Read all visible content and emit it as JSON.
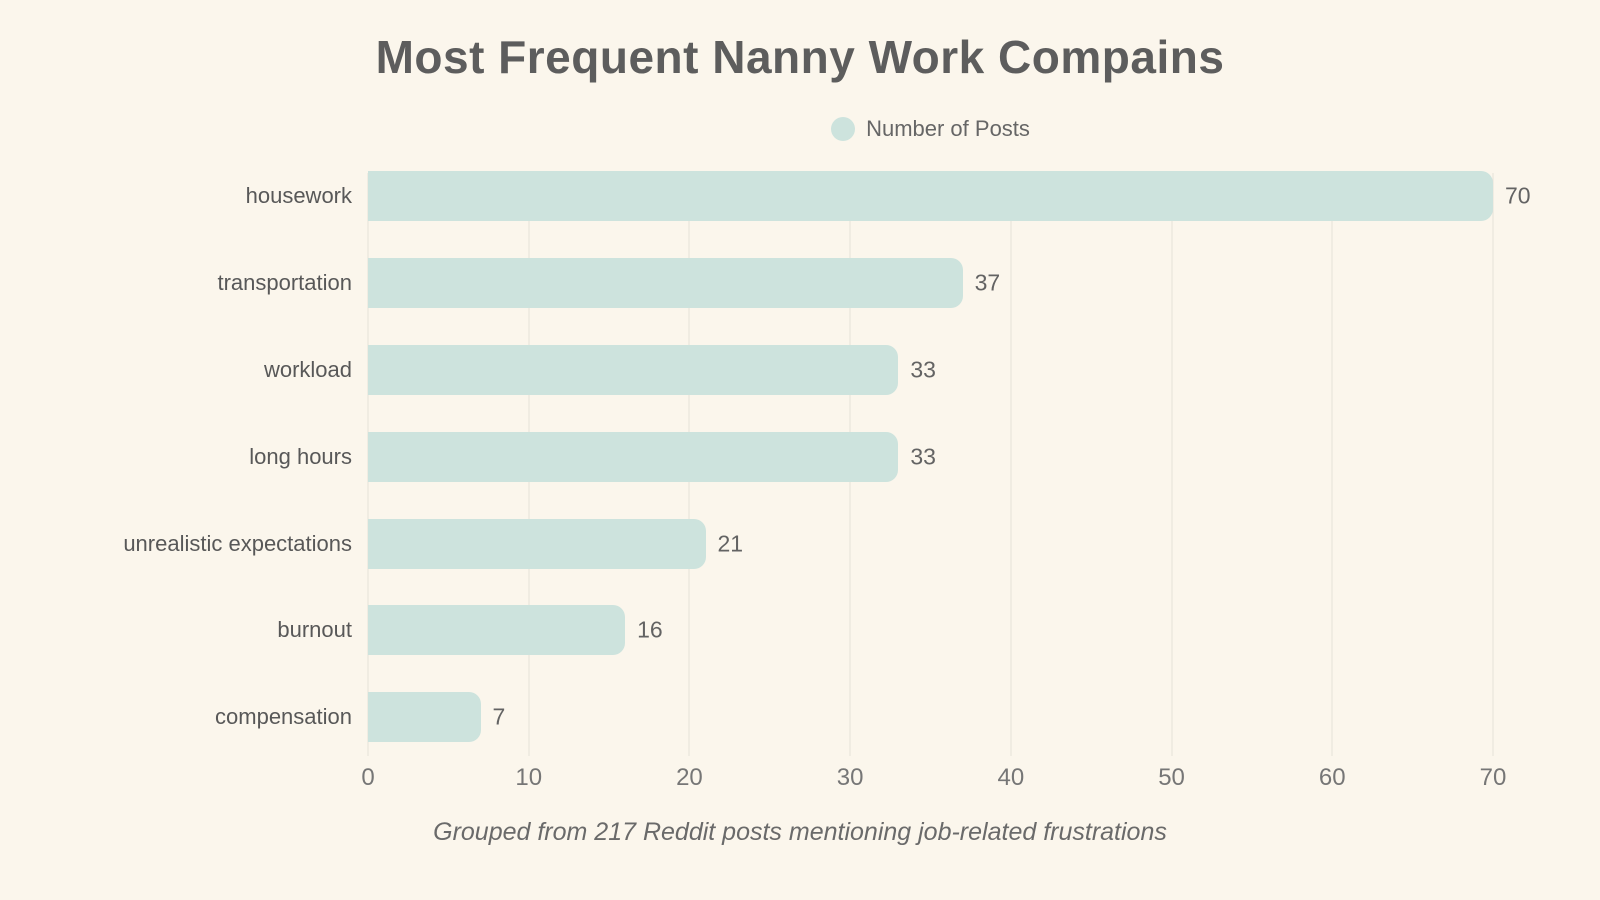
{
  "title": "Most Frequent Nanny Work Compains",
  "legend": {
    "label": "Number of Posts"
  },
  "footer": "Grouped from 217 Reddit posts mentioning job-related frustrations",
  "colors": {
    "background": "#fbf6ec",
    "bar": "#cde3dd",
    "title_text": "#5d5d5d",
    "category_text": "#585858",
    "value_text": "#636363",
    "tick_text": "#767676",
    "gridline": "#e4e1d8",
    "footer_text": "#6a6a6a"
  },
  "chart_data": {
    "type": "bar",
    "orientation": "horizontal",
    "title": "Most Frequent Nanny Work Compains",
    "subtitle": "Grouped from 217 Reddit posts mentioning job-related frustrations",
    "series_name": "Number of Posts",
    "categories": [
      "housework",
      "transportation",
      "workload",
      "long hours",
      "unrealistic expectations",
      "burnout",
      "compensation"
    ],
    "values": [
      70,
      37,
      33,
      33,
      21,
      16,
      7
    ],
    "value_labels_shown": true,
    "xlabel": "",
    "ylabel": "",
    "xlim": [
      0,
      70
    ],
    "x_ticks": [
      0,
      10,
      20,
      30,
      40,
      50,
      60,
      70
    ],
    "grid": true,
    "legend_position": "top-center"
  }
}
